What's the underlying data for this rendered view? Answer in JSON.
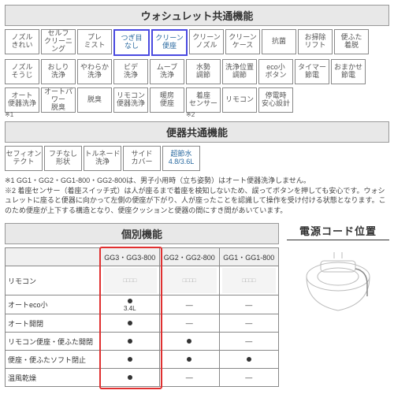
{
  "section1": {
    "title": "ウォシュレット共通機能",
    "rows": [
      [
        {
          "label": "ノズル\nきれい"
        },
        {
          "label": "セルフ\nクリーニング"
        },
        {
          "label": "プレ\nミスト"
        },
        {
          "label": "つぎ目\nなし",
          "highlight": true
        },
        {
          "label": "クリーン\n便座",
          "highlight": true
        },
        {
          "label": "クリーン\nノズル"
        },
        {
          "label": "クリーン\nケース"
        },
        {
          "label": "抗菌"
        },
        {
          "label": "お掃除\nリフト"
        },
        {
          "label": "便ふた\n着脱"
        }
      ],
      [
        {
          "label": "ノズル\nそうじ"
        },
        {
          "label": "おしり\n洗浄"
        },
        {
          "label": "やわらか\n洗浄"
        },
        {
          "label": "ビデ\n洗浄"
        },
        {
          "label": "ムーブ\n洗浄"
        },
        {
          "label": "水勢\n調節"
        },
        {
          "label": "洗浄位置\n調節"
        },
        {
          "label": "eco小\nボタン"
        },
        {
          "label": "タイマー\n節電"
        },
        {
          "label": "おまかせ\n節電"
        }
      ],
      [
        {
          "label": "オート\n便器洗浄",
          "note": "※1"
        },
        {
          "label": "オートパワー\n脱臭"
        },
        {
          "label": "脱臭"
        },
        {
          "label": "リモコン\n便器洗浄"
        },
        {
          "label": "暖房\n便座"
        },
        {
          "label": "着座\nセンサー",
          "note": "※2"
        },
        {
          "label": "リモコン"
        },
        {
          "label": "停電時\n安心設計"
        }
      ]
    ]
  },
  "section2": {
    "title": "便器共通機能",
    "cells": [
      {
        "label": "セフィオン\nテクト"
      },
      {
        "label": "フチなし\n形状"
      },
      {
        "label": "トルネード\n洗浄"
      },
      {
        "label": "サイド\nカバー"
      },
      {
        "label": "超節水\n4.8/3.6L",
        "blue": true
      }
    ]
  },
  "footnotes": [
    "※1 GG1・GG2・GG1-800・GG2-800は、男子小用時（立ち姿勢）はオート便器洗浄しません。",
    "※2 着座センサー（着座スイッチ式）は人が座るまで着座を検知しないため、誤ってボタンを押しても安心です。ウォシュレットに座ると便器に向かって左側の便座が下がり、人が座ったことを認識して操作を受け付ける状態となります。このため便座が上下する構造となり、便座クッションと便器の間にすき間があいています。"
  ],
  "indiv": {
    "title": "個別機能",
    "cols": [
      "GG3・GG3-800",
      "GG2・GG2-800",
      "GG1・GG1-800"
    ],
    "rows": [
      {
        "label": "リモコン",
        "type": "img"
      },
      {
        "label": "オートeco小",
        "vals": [
          "●\n3.4L",
          "—",
          "—"
        ]
      },
      {
        "label": "オート開閉",
        "vals": [
          "●",
          "—",
          "—"
        ]
      },
      {
        "label": "リモコン便座・便ふた開閉",
        "vals": [
          "●",
          "●",
          "—"
        ]
      },
      {
        "label": "便座・便ふたソフト閉止",
        "vals": [
          "●",
          "●",
          "●"
        ]
      },
      {
        "label": "温風乾燥",
        "vals": [
          "●",
          "—",
          "—"
        ]
      }
    ],
    "highlight_col": 0
  },
  "cord": {
    "title": "電源コード位置"
  }
}
